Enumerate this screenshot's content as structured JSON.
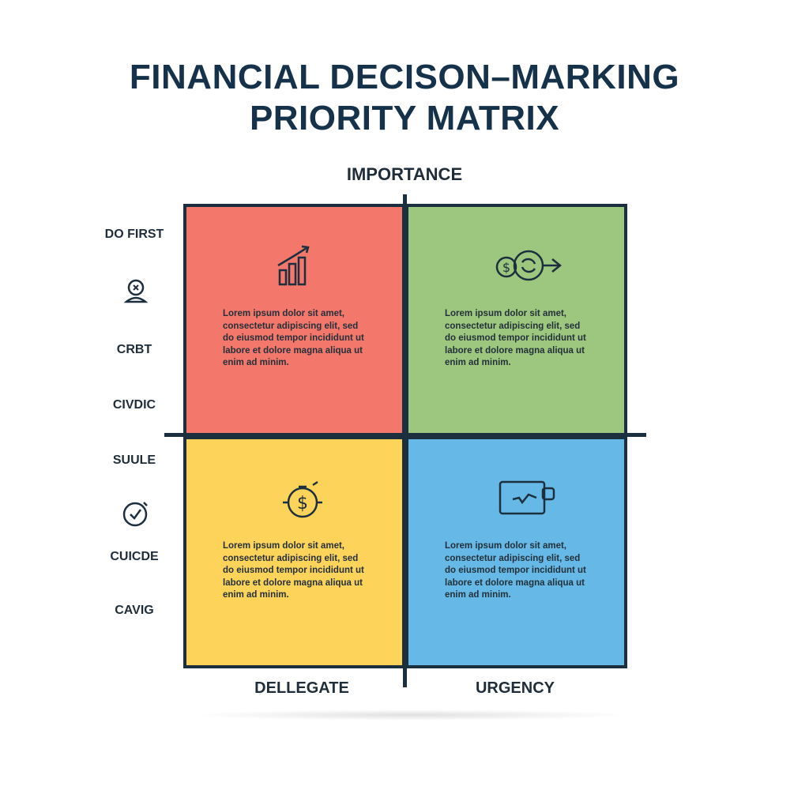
{
  "title": {
    "line1": "FINANCIAL DECISON–MARKING",
    "line2": "PRIORITY MATRIX"
  },
  "axes": {
    "top": "IMPORTANCE",
    "bottom_left": "DELLEGATE",
    "bottom_right": "URGENCY"
  },
  "side_labels": [
    "DO FIRST",
    "CRBT",
    "CIVDIC",
    "SUULE",
    "CUICDE",
    "CAVIG"
  ],
  "side_icons": [
    "person-badge-icon",
    "clock-check-icon"
  ],
  "quadrants": [
    {
      "color": "#f4776b",
      "icon": "growth-chart-icon",
      "text": "Lorem ipsum dolor sit amet, consectetur adipiscing elit, sed do eiusmod tempor incididunt ut labore et dolore magna aliqua ut enim ad minim."
    },
    {
      "color": "#9dc77f",
      "icon": "coin-cycle-icon",
      "text": "Lorem ipsum dolor sit amet, consectetur adipiscing elit, sed do eiusmod tempor incididunt ut labore et dolore magna aliqua ut enim ad minim."
    },
    {
      "color": "#fdd35a",
      "icon": "dollar-timer-icon",
      "text": "Lorem ipsum dolor sit amet, consectetur adipiscing elit, sed do eiusmod tempor incididunt ut labore et dolore magna aliqua ut enim ad minim."
    },
    {
      "color": "#66b9e6",
      "icon": "card-transfer-icon",
      "text": "Lorem ipsum dolor sit amet, consectetur adipiscing elit, sed do eiusmod tempor incididunt ut labore et dolore magna aliqua ut enim ad minim."
    }
  ]
}
